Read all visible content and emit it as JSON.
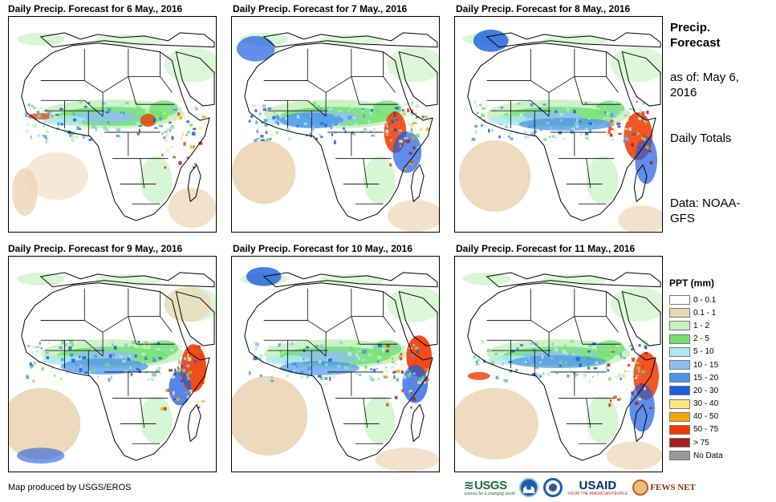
{
  "panels": [
    {
      "title": "Daily Precip. Forecast for 6 May., 2016"
    },
    {
      "title": "Daily Precip. Forecast for 7 May., 2016"
    },
    {
      "title": "Daily Precip. Forecast for 8 May., 2016"
    },
    {
      "title": "Daily Precip. Forecast for 9 May., 2016"
    },
    {
      "title": "Daily Precip. Forecast for 10 May., 2016"
    },
    {
      "title": "Daily Precip. Forecast for 11 May., 2016"
    }
  ],
  "info": {
    "title": "Precip. Forecast",
    "asof": "as of: May 6, 2016",
    "totals": "Daily Totals",
    "data": "Data: NOAA-GFS"
  },
  "legend": {
    "title": "PPT (mm)",
    "items": [
      {
        "label": "0 - 0.1",
        "color": "#ffffff"
      },
      {
        "label": "0.1 - 1",
        "color": "#ecd5b5"
      },
      {
        "label": "1 - 2",
        "color": "#c6f2c0"
      },
      {
        "label": "2 - 5",
        "color": "#72e073"
      },
      {
        "label": "5 - 10",
        "color": "#aee9f4"
      },
      {
        "label": "10 - 15",
        "color": "#8fbff2"
      },
      {
        "label": "15 - 20",
        "color": "#4d95ec"
      },
      {
        "label": "20 - 30",
        "color": "#1c5ee0"
      },
      {
        "label": "30 - 40",
        "color": "#fbe585"
      },
      {
        "label": "40 - 50",
        "color": "#f5a700"
      },
      {
        "label": "50 - 75",
        "color": "#ee3a00"
      },
      {
        "label": "> 75",
        "color": "#a71f1f"
      },
      {
        "label": "No Data",
        "color": "#999999"
      }
    ]
  },
  "credit": "Map produced by USGS/EROS",
  "logos": {
    "usgs": "USGS",
    "usgs_tag": "science for a changing world",
    "usaid": "USAID",
    "usaid_tag": "FROM THE AMERICAN PEOPLE",
    "fews": "FEWS NET"
  }
}
